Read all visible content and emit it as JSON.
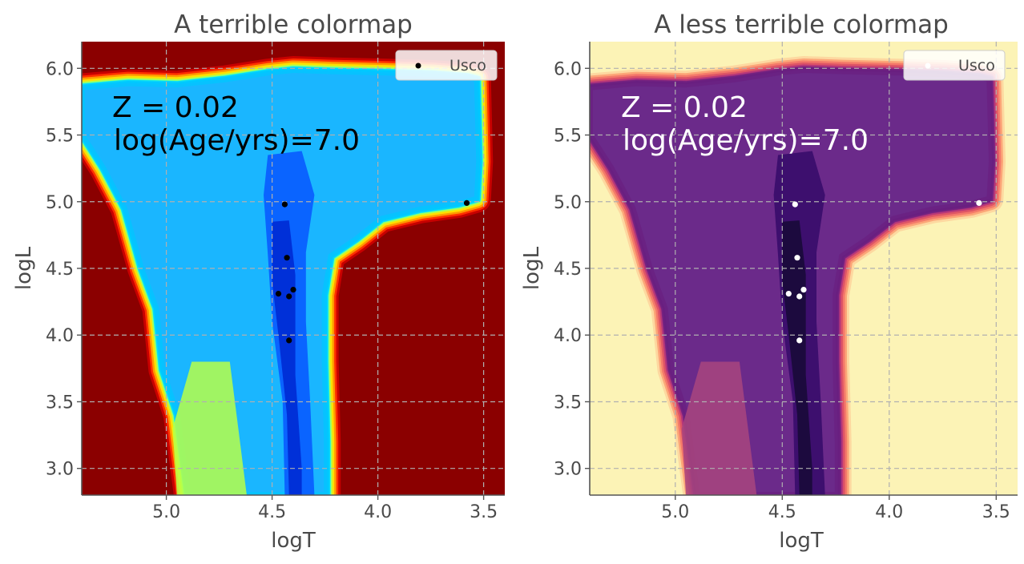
{
  "chart_data": [
    {
      "type": "contour",
      "title": "A terrible colormap",
      "xlabel": "logT",
      "ylabel": "logL",
      "xlim": [
        5.4,
        3.4
      ],
      "ylim": [
        2.8,
        6.2
      ],
      "xticks": [
        "5.0",
        "4.5",
        "4.0",
        "3.5"
      ],
      "yticks": [
        "3.0",
        "3.5",
        "4.0",
        "4.5",
        "5.0",
        "5.5",
        "6.0"
      ],
      "grid": true,
      "colormap": "jet",
      "legend": {
        "position": "upper right",
        "entries": [
          "Usco"
        ]
      },
      "annotation": [
        "Z = 0.02",
        "log(Age/yrs)=7.0"
      ],
      "series": [
        {
          "name": "Usco",
          "type": "scatter",
          "color": "#000000",
          "x": [
            4.44,
            4.43,
            4.47,
            4.42,
            4.4,
            4.42,
            3.58
          ],
          "y": [
            4.98,
            4.58,
            4.31,
            4.29,
            4.34,
            3.96,
            4.99
          ]
        }
      ]
    },
    {
      "type": "contour",
      "title": "A less terrible colormap",
      "xlabel": "logT",
      "ylabel": "logL",
      "xlim": [
        5.4,
        3.4
      ],
      "ylim": [
        2.8,
        6.2
      ],
      "xticks": [
        "5.0",
        "4.5",
        "4.0",
        "3.5"
      ],
      "yticks": [
        "3.0",
        "3.5",
        "4.0",
        "4.5",
        "5.0",
        "5.5",
        "6.0"
      ],
      "grid": true,
      "colormap": "magma",
      "legend": {
        "position": "upper right",
        "entries": [
          "Usco"
        ]
      },
      "annotation": [
        "Z = 0.02",
        "log(Age/yrs)=7.0"
      ],
      "series": [
        {
          "name": "Usco",
          "type": "scatter",
          "color": "#ffffff",
          "x": [
            4.44,
            4.43,
            4.47,
            4.42,
            4.4,
            4.42,
            3.58
          ],
          "y": [
            4.98,
            4.58,
            4.31,
            4.29,
            4.34,
            3.96,
            4.99
          ]
        }
      ]
    }
  ],
  "palettes": {
    "jet": {
      "background": "#8b0000",
      "rim": [
        "#c80000",
        "#ff3000",
        "#ff9a00",
        "#ffe000",
        "#aaff55",
        "#22ffe0",
        "#00c8ff"
      ],
      "interior": "#1ab6ff",
      "deep": "#0a64ff",
      "deepest": "#0030d8",
      "annotation_color": "#000000"
    },
    "magma": {
      "background": "#fcf3b6",
      "rim": [
        "#fdd8a0",
        "#fca678",
        "#f47a6a",
        "#de5566",
        "#b73779",
        "#8c2981",
        "#6a1f80"
      ],
      "interior": "#6b2a8a",
      "deep": "#3d0f6e",
      "deepest": "#1c0a3e",
      "annotation_color": "#ffffff"
    }
  }
}
